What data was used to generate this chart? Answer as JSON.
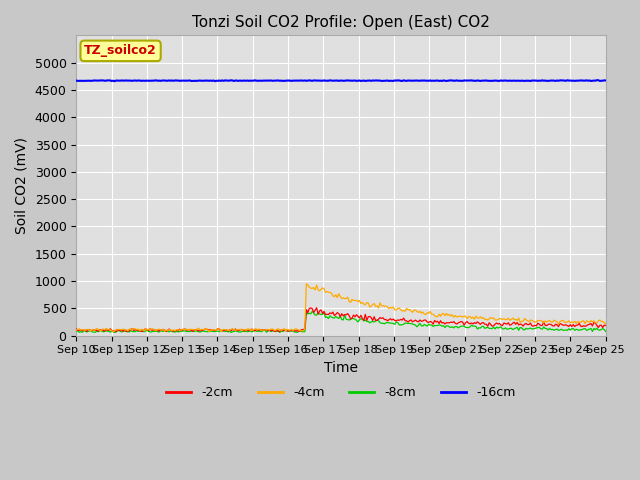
{
  "title": "Tonzi Soil CO2 Profile: Open (East) CO2",
  "xlabel": "Time",
  "ylabel": "Soil CO2 (mV)",
  "ylim": [
    0,
    5500
  ],
  "yticks": [
    0,
    500,
    1000,
    1500,
    2000,
    2500,
    3000,
    3500,
    4000,
    4500,
    5000
  ],
  "fig_facecolor": "#c8c8c8",
  "plot_bg_color": "#e0e0e0",
  "legend_label": "TZ_soilco2",
  "legend_box_color": "#ffff99",
  "legend_box_edge": "#aaaa00",
  "series_labels": [
    "-2cm",
    "-4cm",
    "-8cm",
    "-16cm"
  ],
  "series_colors": [
    "#ff0000",
    "#ffaa00",
    "#00cc00",
    "#0000ff"
  ],
  "n_points": 360,
  "spike_index": 156,
  "base_2cm": 100,
  "base_4cm": 110,
  "base_8cm": 80,
  "base_16cm": 4670,
  "spike_peak_2cm": 480,
  "spike_peak_4cm": 950,
  "spike_peak_8cm": 430,
  "decay_tau": 60,
  "post_level_2cm": 180,
  "post_level_4cm": 220,
  "post_level_8cm": 100,
  "noise_amp": 18,
  "xtick_labels": [
    "Sep 10",
    "Sep 11",
    "Sep 12",
    "Sep 13",
    "Sep 14",
    "Sep 15",
    "Sep 16",
    "Sep 17",
    "Sep 18",
    "Sep 19",
    "Sep 20",
    "Sep 21",
    "Sep 22",
    "Sep 23",
    "Sep 24",
    "Sep 25"
  ],
  "figsize": [
    6.4,
    4.8
  ],
  "dpi": 100
}
